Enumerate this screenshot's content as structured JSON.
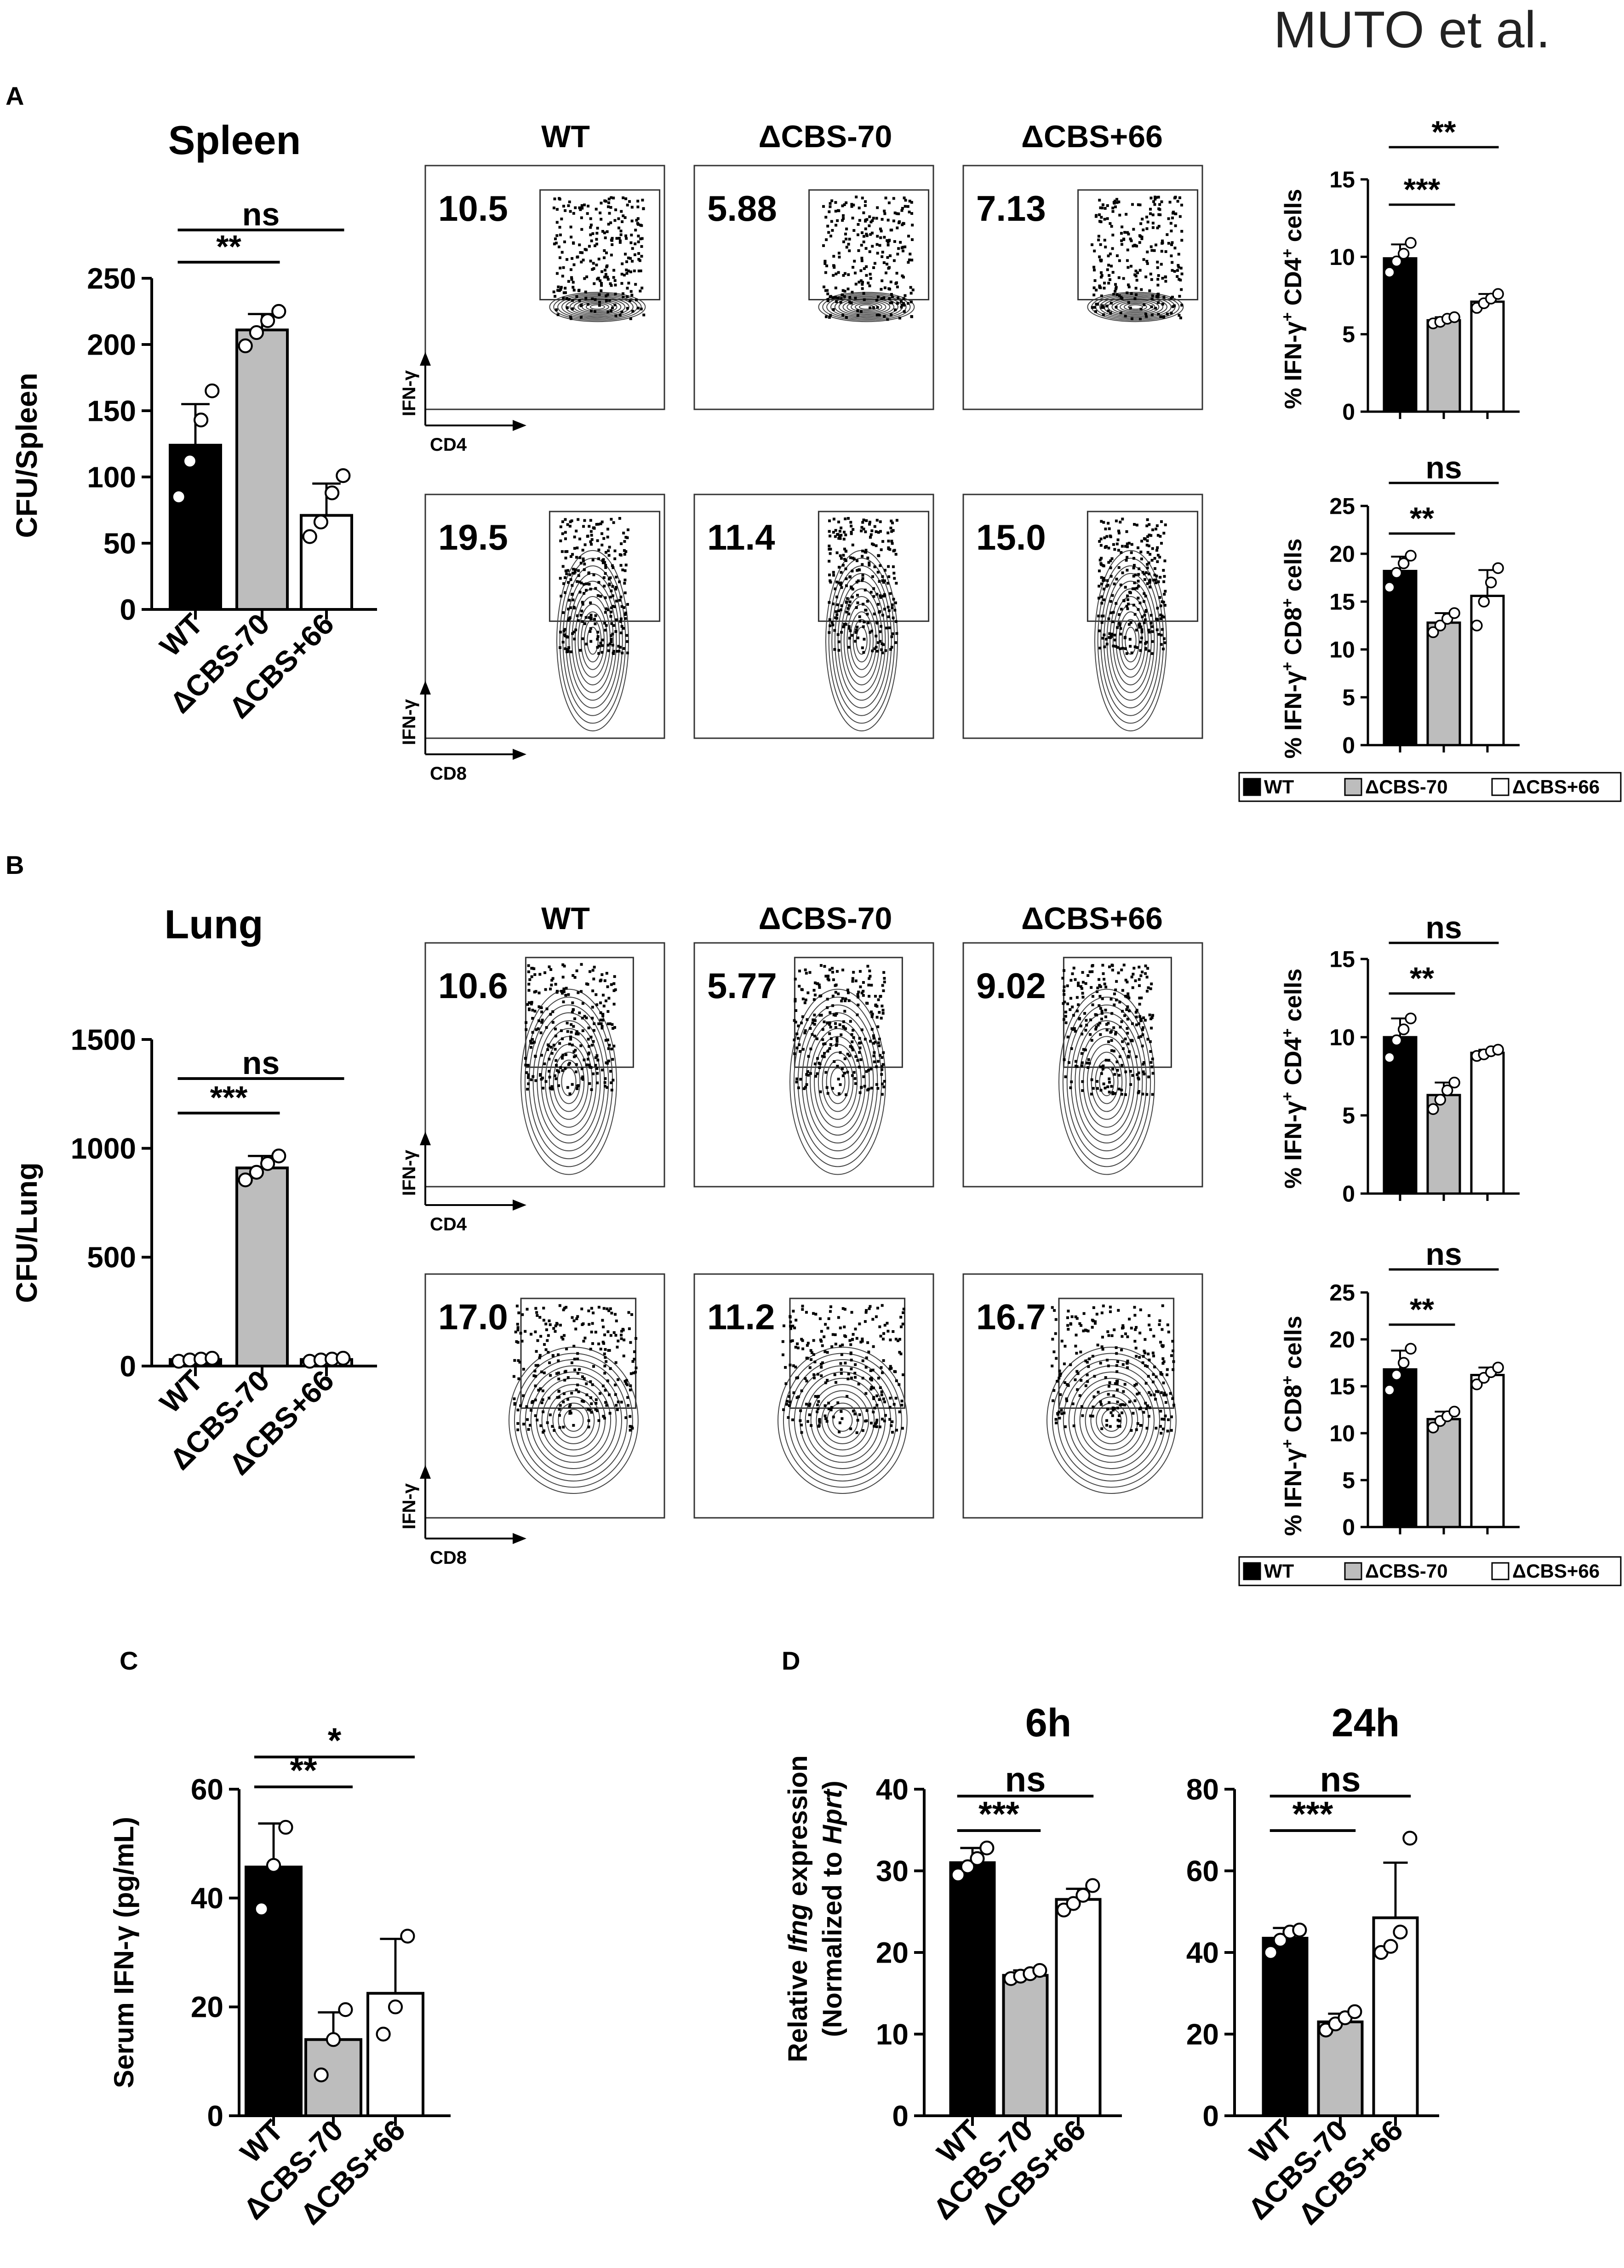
{
  "header": {
    "author": "MUTO et al."
  },
  "groups": [
    "WT",
    "ΔCBS-70",
    "ΔCBS+66"
  ],
  "colors": {
    "WT": "#000000",
    "ΔCBS-70": "#bdbdbd",
    "ΔCBS+66": "#ffffff"
  },
  "flow_labels": {
    "ifn": "IFN-γ",
    "cd4": "CD4",
    "cd8": "CD8"
  },
  "legend": [
    "WT",
    "ΔCBS-70",
    "ΔCBS+66"
  ],
  "panels": {
    "A": {
      "letter": "A",
      "tissue": "Spleen",
      "cfu": {
        "ylabel": "CFU/Spleen",
        "yticks": [
          "0",
          "50",
          "100",
          "150",
          "200",
          "250"
        ],
        "sig": [
          {
            "label": "**"
          },
          {
            "label": "ns"
          }
        ]
      },
      "flow_headers": [
        "WT",
        "ΔCBS-70",
        "ΔCBS+66"
      ],
      "flow_cd4": [
        "10.5",
        "5.88",
        "7.13"
      ],
      "flow_cd8": [
        "19.5",
        "11.4",
        "15.0"
      ],
      "cd4_bar": {
        "ylabel_parts": [
          "% IFN-γ",
          "+",
          " CD4",
          "+",
          " cells"
        ],
        "yticks": [
          "0",
          "5",
          "10",
          "15"
        ],
        "sig": [
          {
            "label": "***"
          },
          {
            "label": "**"
          }
        ]
      },
      "cd8_bar": {
        "ylabel_parts": [
          "% IFN-γ",
          "+",
          " CD8",
          "+",
          " cells"
        ],
        "yticks": [
          "0",
          "5",
          "10",
          "15",
          "20",
          "25"
        ],
        "sig": [
          {
            "label": "**"
          },
          {
            "label": "ns"
          }
        ]
      }
    },
    "B": {
      "letter": "B",
      "tissue": "Lung",
      "cfu": {
        "ylabel": "CFU/Lung",
        "yticks": [
          "0",
          "500",
          "1000",
          "1500"
        ],
        "sig": [
          {
            "label": "***"
          },
          {
            "label": "ns"
          }
        ]
      },
      "flow_headers": [
        "WT",
        "ΔCBS-70",
        "ΔCBS+66"
      ],
      "flow_cd4": [
        "10.6",
        "5.77",
        "9.02"
      ],
      "flow_cd8": [
        "17.0",
        "11.2",
        "16.7"
      ],
      "cd4_bar": {
        "ylabel_parts": [
          "% IFN-γ",
          "+",
          " CD4",
          "+",
          " cells"
        ],
        "yticks": [
          "0",
          "5",
          "10",
          "15"
        ],
        "sig": [
          {
            "label": "**"
          },
          {
            "label": "ns"
          }
        ]
      },
      "cd8_bar": {
        "ylabel_parts": [
          "% IFN-γ",
          "+",
          " CD8",
          "+",
          " cells"
        ],
        "yticks": [
          "0",
          "5",
          "10",
          "15",
          "20",
          "25"
        ],
        "sig": [
          {
            "label": "**"
          },
          {
            "label": "ns"
          }
        ]
      }
    },
    "C": {
      "letter": "C",
      "serum": {
        "ylabel": "Serum IFN-γ (pg/mL)",
        "yticks": [
          "0",
          "20",
          "40",
          "60"
        ],
        "sig": [
          {
            "label": "**"
          },
          {
            "label": "*"
          }
        ]
      }
    },
    "D": {
      "letter": "D",
      "ylabel_line1_parts": [
        "Relative ",
        "Ifng",
        " expression"
      ],
      "ylabel_line2_parts": [
        "(Normalized to ",
        "Hprt",
        ")"
      ],
      "h6": {
        "title": "6h",
        "yticks": [
          "0",
          "10",
          "20",
          "30",
          "40"
        ],
        "sig": [
          {
            "label": "***"
          },
          {
            "label": "ns"
          }
        ]
      },
      "h24": {
        "title": "24h",
        "yticks": [
          "0",
          "20",
          "40",
          "60",
          "80"
        ],
        "sig": [
          {
            "label": "***"
          },
          {
            "label": "ns"
          }
        ]
      }
    }
  },
  "chart_data": [
    {
      "type": "bar",
      "panel": "A",
      "ylabel": "CFU/Spleen",
      "ylim": [
        0,
        250
      ],
      "categories": [
        "WT",
        "ΔCBS-70",
        "ΔCBS+66"
      ],
      "values": [
        124,
        211,
        71
      ],
      "errors": [
        31,
        12,
        24
      ],
      "points": [
        [
          85,
          112,
          143,
          165
        ],
        [
          199,
          209,
          218,
          225
        ],
        [
          55,
          66,
          88,
          101
        ]
      ]
    },
    {
      "type": "bar",
      "panel": "A",
      "ylabel": "% IFN-γ+ CD4+ cells",
      "ylim": [
        0,
        15
      ],
      "categories": [
        "WT",
        "ΔCBS-70",
        "ΔCBS+66"
      ],
      "values": [
        9.9,
        5.9,
        7.1
      ],
      "errors": [
        0.9,
        0.2,
        0.5
      ],
      "points": [
        [
          9.0,
          9.7,
          10.2,
          10.9
        ],
        [
          5.7,
          5.8,
          6.0,
          6.1
        ],
        [
          6.7,
          7.0,
          7.3,
          7.6
        ]
      ]
    },
    {
      "type": "bar",
      "panel": "A",
      "ylabel": "% IFN-γ+ CD8+ cells",
      "ylim": [
        0,
        25
      ],
      "categories": [
        "WT",
        "ΔCBS-70",
        "ΔCBS+66"
      ],
      "values": [
        18.2,
        12.8,
        15.6
      ],
      "errors": [
        1.5,
        1.0,
        2.7
      ],
      "points": [
        [
          16.5,
          18.0,
          19.0,
          19.8
        ],
        [
          11.8,
          12.5,
          13.2,
          13.8
        ],
        [
          12.5,
          15.0,
          17.0,
          18.5
        ]
      ]
    },
    {
      "type": "bar",
      "panel": "B",
      "ylabel": "CFU/Lung",
      "ylim": [
        0,
        1500
      ],
      "categories": [
        "WT",
        "ΔCBS-70",
        "ΔCBS+66"
      ],
      "values": [
        30,
        910,
        30
      ],
      "errors": [
        8,
        55,
        8
      ],
      "points": [
        [
          22,
          28,
          32,
          36
        ],
        [
          855,
          890,
          930,
          965
        ],
        [
          22,
          28,
          32,
          36
        ]
      ]
    },
    {
      "type": "bar",
      "panel": "B",
      "ylabel": "% IFN-γ+ CD4+ cells",
      "ylim": [
        0,
        15
      ],
      "categories": [
        "WT",
        "ΔCBS-70",
        "ΔCBS+66"
      ],
      "values": [
        10.0,
        6.3,
        9.0
      ],
      "errors": [
        1.2,
        0.8,
        0.2
      ],
      "points": [
        [
          8.7,
          9.8,
          10.5,
          11.2
        ],
        [
          5.4,
          6.0,
          6.6,
          7.1
        ],
        [
          8.8,
          8.9,
          9.1,
          9.2
        ]
      ]
    },
    {
      "type": "bar",
      "panel": "B",
      "ylabel": "% IFN-γ+ CD8+ cells",
      "ylim": [
        0,
        25
      ],
      "categories": [
        "WT",
        "ΔCBS-70",
        "ΔCBS+66"
      ],
      "values": [
        16.8,
        11.5,
        16.2
      ],
      "errors": [
        2.0,
        0.8,
        0.8
      ],
      "points": [
        [
          14.6,
          16.2,
          17.5,
          19.0
        ],
        [
          10.6,
          11.3,
          11.8,
          12.3
        ],
        [
          15.2,
          15.9,
          16.5,
          17.0
        ]
      ]
    },
    {
      "type": "bar",
      "panel": "C",
      "ylabel": "Serum IFN-γ (pg/mL)",
      "ylim": [
        0,
        60
      ],
      "categories": [
        "WT",
        "ΔCBS-70",
        "ΔCBS+66"
      ],
      "values": [
        45.7,
        14.0,
        22.5
      ],
      "errors": [
        8.0,
        5.0,
        10.0
      ],
      "points": [
        [
          38.0,
          46.0,
          53.0
        ],
        [
          7.5,
          14.0,
          19.5
        ],
        [
          15.0,
          20.0,
          33.0
        ]
      ]
    },
    {
      "type": "bar",
      "panel": "D",
      "title": "6h",
      "ylabel": "Relative Ifng expression (Normalized to Hprt)",
      "ylim": [
        0,
        40
      ],
      "categories": [
        "WT",
        "ΔCBS-70",
        "ΔCBS+66"
      ],
      "values": [
        31.0,
        17.2,
        26.5
      ],
      "errors": [
        1.8,
        0.6,
        1.3
      ],
      "points": [
        [
          29.5,
          30.5,
          31.5,
          32.8
        ],
        [
          16.8,
          17.1,
          17.4,
          17.8
        ],
        [
          25.2,
          26.0,
          27.0,
          28.2
        ]
      ]
    },
    {
      "type": "bar",
      "panel": "D",
      "title": "24h",
      "ylabel": "Relative Ifng expression (Normalized to Hprt)",
      "ylim": [
        0,
        80
      ],
      "categories": [
        "WT",
        "ΔCBS-70",
        "ΔCBS+66"
      ],
      "values": [
        43.5,
        23.0,
        48.5
      ],
      "errors": [
        2.5,
        2.0,
        13.5
      ],
      "points": [
        [
          40.0,
          43.0,
          45.0,
          45.5
        ],
        [
          21.0,
          22.5,
          24.0,
          25.5
        ],
        [
          40.0,
          41.5,
          45.0,
          68.0
        ]
      ]
    }
  ]
}
